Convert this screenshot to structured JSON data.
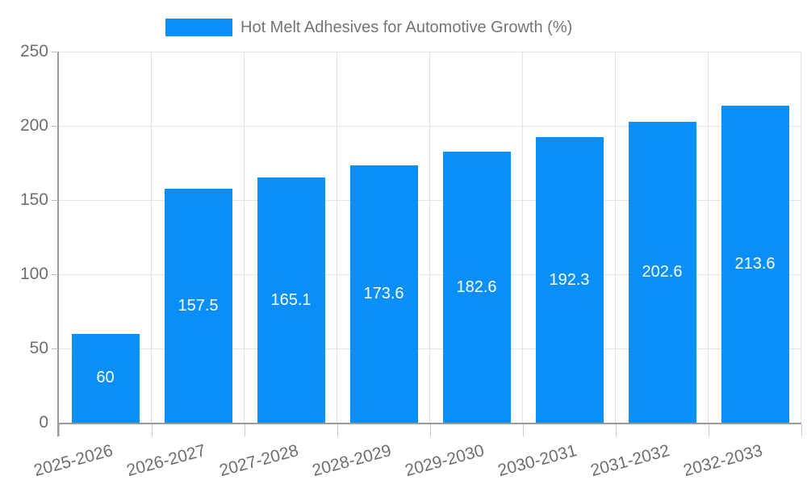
{
  "legend": {
    "swatch_color": "#0890f8"
  },
  "chart_data": {
    "type": "bar",
    "title": "Hot Melt Adhesives for Automotive Growth (%)",
    "categories": [
      "2025-2026",
      "2026-2027",
      "2027-2028",
      "2028-2029",
      "2029-2030",
      "2030-2031",
      "2031-2032",
      "2032-2033"
    ],
    "series": [
      {
        "name": "Hot Melt Adhesives for Automotive Growth (%)",
        "values": [
          60,
          157.5,
          165.1,
          173.6,
          182.6,
          192.3,
          202.6,
          213.6
        ]
      }
    ],
    "bar_labels": [
      "60",
      "157.5",
      "165.1",
      "173.6",
      "182.6",
      "192.3",
      "202.6",
      "213.6"
    ],
    "xlabel": "",
    "ylabel": "",
    "ylim": [
      0,
      250
    ],
    "yticks": [
      0,
      50,
      100,
      150,
      200,
      250
    ],
    "grid": true,
    "legend_position": "top",
    "bar_color": "#0890f8",
    "annotation_color": "#ffffff",
    "axis_text_color": "#6e6e6e"
  }
}
